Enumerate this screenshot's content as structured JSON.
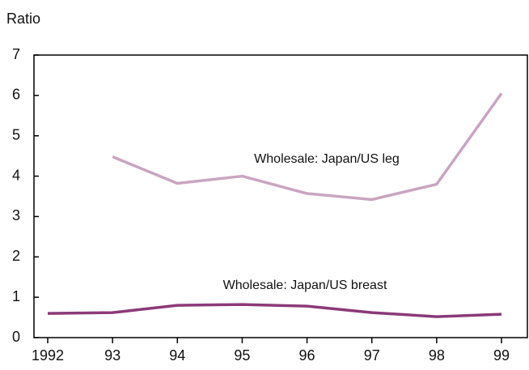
{
  "chart_data": {
    "type": "line",
    "y_label": "Ratio",
    "categories": [
      "1992",
      "93",
      "94",
      "95",
      "96",
      "97",
      "98",
      "99"
    ],
    "series": [
      {
        "name": "Wholesale: Japan/US leg",
        "color": "#c9a5c0",
        "values": [
          null,
          4.48,
          3.82,
          4.0,
          3.57,
          3.42,
          3.8,
          6.05
        ]
      },
      {
        "name": "Wholesale: Japan/US breast",
        "color": "#8b3a78",
        "values": [
          0.6,
          0.62,
          0.8,
          0.82,
          0.78,
          0.62,
          0.52,
          0.58
        ]
      }
    ],
    "ylim": [
      0,
      7
    ],
    "yticks": [
      0,
      1,
      2,
      3,
      4,
      5,
      6,
      7
    ]
  }
}
